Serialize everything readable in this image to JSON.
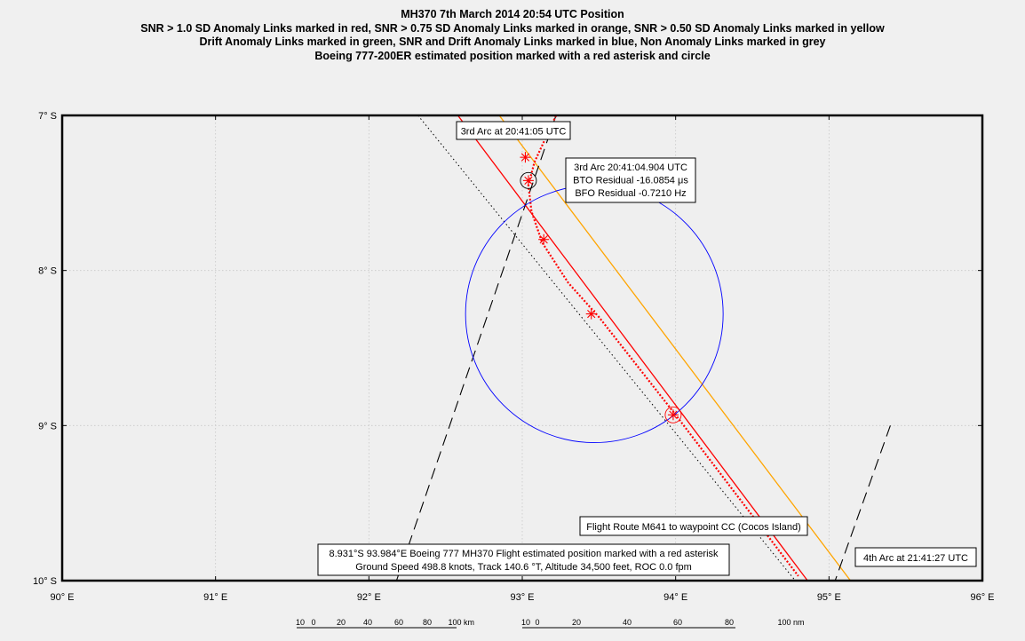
{
  "titles": [
    "MH370 7th March 2014 20:54 UTC Position",
    "SNR > 1.0 SD Anomaly Links marked in red, SNR > 0.75 SD Anomaly Links marked in orange, SNR > 0.50 SD Anomaly Links marked in yellow",
    "Drift Anomaly Links marked in green, SNR and Drift Anomaly Links marked in blue, Non Anomaly Links marked in grey",
    "Boeing 777-200ER estimated position marked with a red asterisk and circle"
  ],
  "map": {
    "lon_range": [
      90,
      96
    ],
    "lat_range": [
      -7,
      -10
    ],
    "lon_ticks": [
      {
        "value": 90,
        "label": "90° E"
      },
      {
        "value": 91,
        "label": "91° E"
      },
      {
        "value": 92,
        "label": "92° E"
      },
      {
        "value": 93,
        "label": "93° E"
      },
      {
        "value": 94,
        "label": "94° E"
      },
      {
        "value": 95,
        "label": "95° E"
      },
      {
        "value": 96,
        "label": "96° E"
      }
    ],
    "lat_ticks": [
      {
        "value": -7,
        "label": "7° S"
      },
      {
        "value": -8,
        "label": "8° S"
      },
      {
        "value": -9,
        "label": "9° S"
      },
      {
        "value": -10,
        "label": "10° S"
      }
    ],
    "grid": true
  },
  "lines": {
    "flight_route": {
      "color": "#ff0000",
      "points": [
        [
          92.58,
          -7.0
        ],
        [
          94.86,
          -10.0
        ]
      ]
    },
    "orange_arc": {
      "color": "#ffa500",
      "points": [
        [
          92.85,
          -7.0
        ],
        [
          95.14,
          -10.0
        ]
      ]
    },
    "dotted_black": {
      "color": "#000000",
      "points": [
        [
          92.32,
          -7.0
        ],
        [
          94.78,
          -10.0
        ]
      ]
    },
    "arc3_dashed": {
      "color": "#000000",
      "points": [
        [
          93.22,
          -7.0
        ],
        [
          92.18,
          -10.0
        ]
      ]
    },
    "arc4_dashed": {
      "color": "#000000",
      "points": [
        [
          95.4,
          -9.0
        ],
        [
          95.04,
          -10.0
        ]
      ]
    }
  },
  "red_dotted_path": [
    [
      93.23,
      -6.98
    ],
    [
      93.08,
      -7.3
    ],
    [
      93.04,
      -7.45
    ],
    [
      93.06,
      -7.62
    ],
    [
      93.13,
      -7.82
    ],
    [
      93.3,
      -8.08
    ],
    [
      93.5,
      -8.3
    ],
    [
      94.0,
      -8.931
    ],
    [
      94.8,
      -9.97
    ]
  ],
  "asterisks": [
    {
      "lon": 93.02,
      "lat": -7.27
    },
    {
      "lon": 93.04,
      "lat": -7.42
    },
    {
      "lon": 93.14,
      "lat": -7.8
    },
    {
      "lon": 93.45,
      "lat": -8.28
    },
    {
      "lon": 93.984,
      "lat": -8.931
    }
  ],
  "circles": {
    "blue_circle": {
      "lon": 93.47,
      "lat": -8.28,
      "radius_deg": 0.84,
      "color": "#0000ff"
    },
    "red_marker_circle": {
      "lon": 93.984,
      "lat": -8.931,
      "color": "#ff0000"
    },
    "arc3_marker_circle": {
      "lon": 93.04,
      "lat": -7.42,
      "color": "#000000"
    }
  },
  "labels": {
    "arc3_time": "3rd Arc at 20:41:05 UTC",
    "arc3_info": [
      "3rd Arc 20:41:04.904 UTC",
      "BTO Residual -16.0854 μs",
      "BFO Residual -0.7210 Hz"
    ],
    "route_label": "Flight Route M641 to waypoint CC (Cocos Island)",
    "position_info": [
      "8.931°S 93.984°E Boeing 777 MH370 Flight estimated position marked with a red asterisk",
      "Ground Speed 498.8 knots, Track 140.6 °T, Altitude 34,500 feet, ROC 0.0 fpm"
    ],
    "arc4_time": "4th Arc at 21:41:27 UTC"
  },
  "scale_bars": {
    "km": {
      "ticks": [
        "10",
        "0",
        "20",
        "40",
        "60",
        "80",
        "100"
      ],
      "unit": "km"
    },
    "nm": {
      "ticks": [
        "10",
        "0",
        "20",
        "40",
        "60",
        "80",
        "100"
      ],
      "unit": "nm"
    }
  }
}
